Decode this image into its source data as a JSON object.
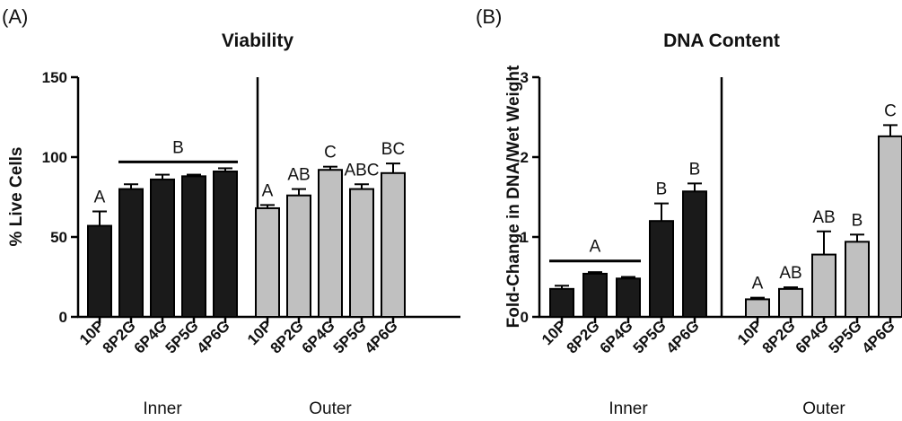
{
  "colors": {
    "inner": "#1a1a1a",
    "outer": "#c0c0c0",
    "stroke": "#000000"
  },
  "chart_data": [
    {
      "type": "bar",
      "panel_label": "(A)",
      "title": "Viability",
      "ylabel": "% Live Cells",
      "xlabel": "",
      "ylim": [
        0,
        150
      ],
      "yticks": [
        "0",
        "50",
        "100",
        "150"
      ],
      "ytick_values": [
        0,
        50,
        100,
        150
      ],
      "groups": [
        {
          "name": "Inner",
          "color": "#1a1a1a",
          "categories": [
            "10P",
            "8P2G",
            "6P4G",
            "5P5G",
            "4P6G"
          ],
          "values": [
            57,
            80,
            86,
            88,
            91
          ],
          "errors": [
            9,
            3,
            3,
            1,
            2
          ],
          "letters": [
            "A",
            "",
            "",
            "",
            ""
          ]
        },
        {
          "name": "Outer",
          "color": "#c0c0c0",
          "categories": [
            "10P",
            "8P2G",
            "6P4G",
            "5P5G",
            "4P6G"
          ],
          "values": [
            68,
            76,
            92,
            80,
            90
          ],
          "errors": [
            2,
            4,
            2,
            3,
            6
          ],
          "letters": [
            "A",
            "AB",
            "C",
            "ABC",
            "BC"
          ]
        }
      ],
      "bracket": {
        "label": "B",
        "group": 0,
        "from_index": 1,
        "to_index": 4,
        "y": 97
      }
    },
    {
      "type": "bar",
      "panel_label": "(B)",
      "title": "DNA Content",
      "ylabel": "Fold-Change in DNA/Wet Weight",
      "xlabel": "",
      "ylim": [
        0,
        3
      ],
      "yticks": [
        "0",
        "1",
        "2",
        "3"
      ],
      "ytick_values": [
        0,
        1,
        2,
        3
      ],
      "groups": [
        {
          "name": "Inner",
          "color": "#1a1a1a",
          "categories": [
            "10P",
            "8P2G",
            "6P4G",
            "5P5G",
            "4P6G"
          ],
          "values": [
            0.35,
            0.54,
            0.48,
            1.2,
            1.57
          ],
          "errors": [
            0.04,
            0.02,
            0.02,
            0.22,
            0.1
          ],
          "letters": [
            "",
            "",
            "",
            "B",
            "B"
          ]
        },
        {
          "name": "Outer",
          "color": "#c0c0c0",
          "categories": [
            "10P",
            "8P2G",
            "6P4G",
            "5P5G",
            "4P6G"
          ],
          "values": [
            0.22,
            0.35,
            0.78,
            0.94,
            2.26
          ],
          "errors": [
            0.02,
            0.02,
            0.29,
            0.09,
            0.14
          ],
          "letters": [
            "A",
            "AB",
            "AB",
            "B",
            "C"
          ]
        }
      ],
      "bracket": {
        "label": "A",
        "group": 0,
        "from_index": 0,
        "to_index": 2,
        "y": 0.7
      }
    }
  ]
}
